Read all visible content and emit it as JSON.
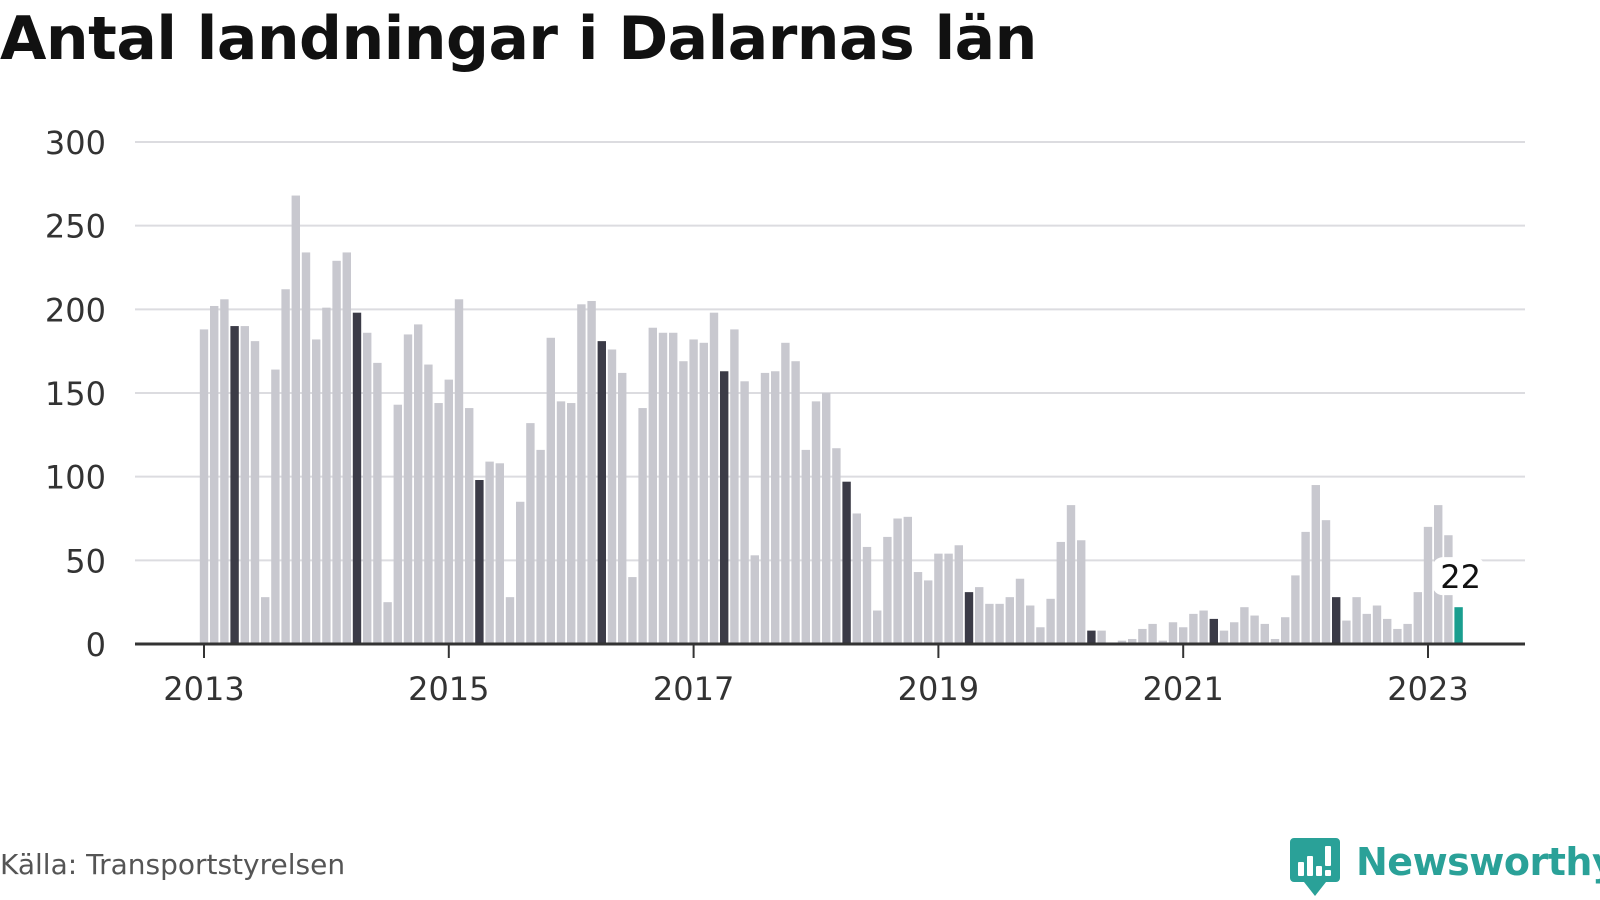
{
  "chart_data": {
    "type": "bar",
    "title": "Antal landningar i Dalarnas län",
    "source": "Källa: Transportstyrelsen",
    "xlabel": "",
    "ylabel": "",
    "ylim": [
      0,
      300
    ],
    "yticks": [
      "0",
      "50",
      "100",
      "150",
      "200",
      "250",
      "300"
    ],
    "xticks": [
      "2013",
      "2015",
      "2017",
      "2019",
      "2021",
      "2023"
    ],
    "x_range": [
      "2013-01",
      "2023-04"
    ],
    "grid": true,
    "highlight_month": 4,
    "colors": {
      "bar": "#c8c8cf",
      "highlight": "#3b3b47",
      "latest": "#1a9e8f",
      "grid": "#dcdce0",
      "axis": "#333333"
    },
    "latest_label": "22",
    "values": [
      188,
      202,
      206,
      190,
      190,
      181,
      28,
      164,
      212,
      268,
      234,
      182,
      201,
      229,
      234,
      198,
      186,
      168,
      25,
      143,
      185,
      191,
      167,
      144,
      158,
      206,
      141,
      98,
      109,
      108,
      28,
      85,
      132,
      116,
      183,
      145,
      144,
      203,
      205,
      181,
      176,
      162,
      40,
      141,
      189,
      186,
      186,
      169,
      182,
      180,
      198,
      163,
      188,
      157,
      53,
      162,
      163,
      180,
      169,
      116,
      145,
      150,
      117,
      97,
      78,
      58,
      20,
      64,
      75,
      76,
      43,
      38,
      54,
      54,
      59,
      31,
      34,
      24,
      24,
      28,
      39,
      23,
      10,
      27,
      61,
      83,
      62,
      8,
      8,
      0,
      2,
      3,
      9,
      12,
      2,
      13,
      10,
      18,
      20,
      15,
      8,
      13,
      22,
      17,
      12,
      3,
      16,
      41,
      67,
      95,
      74,
      28,
      14,
      28,
      18,
      23,
      15,
      9,
      12,
      31,
      70,
      83,
      65,
      22
    ]
  },
  "brand": {
    "name": "Newsworthy",
    "icon": "newsworthy-logo-icon"
  }
}
